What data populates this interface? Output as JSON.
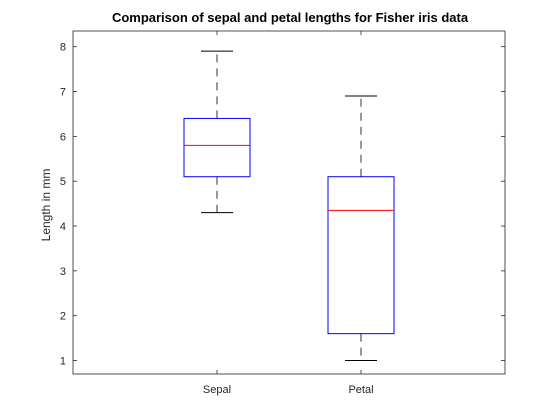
{
  "chart_data": {
    "type": "box",
    "title": "Comparison of sepal and petal lengths for Fisher iris data",
    "xlabel": "",
    "ylabel": "Length in mm",
    "categories": [
      "Sepal",
      "Petal"
    ],
    "ylim": [
      0.7,
      8.35
    ],
    "yticks": [
      1,
      2,
      3,
      4,
      5,
      6,
      7,
      8
    ],
    "grid": false,
    "boxes": [
      {
        "category": "Sepal",
        "min": 4.3,
        "q1": 5.1,
        "median": 5.8,
        "q3": 6.4,
        "max": 7.9
      },
      {
        "category": "Petal",
        "min": 1.0,
        "q1": 1.6,
        "median": 4.35,
        "q3": 5.1,
        "max": 6.9
      }
    ],
    "colors": {
      "box": "#0000ff",
      "median": "#ff0000",
      "whisker": "#000000",
      "axes": "#262626"
    }
  }
}
